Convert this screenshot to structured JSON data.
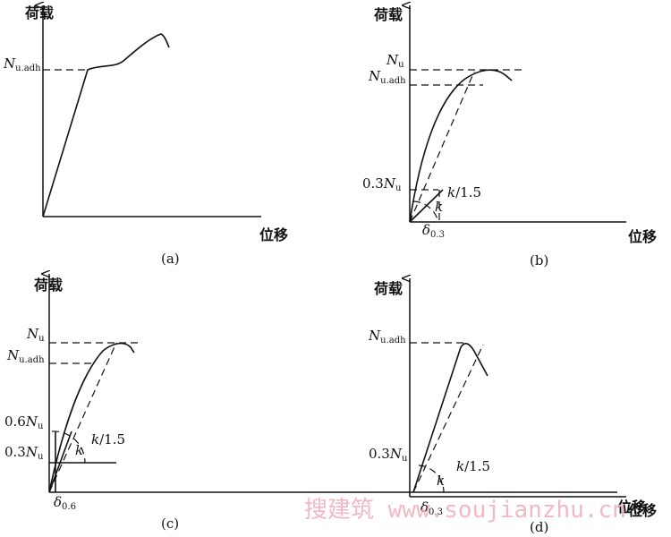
{
  "panels": [
    {
      "caption": "(a)",
      "y_axis": "荷载",
      "x_axis": "位移",
      "labels": [
        {
          "symbol": "N",
          "sub": "u.adh"
        }
      ]
    },
    {
      "caption": "(b)",
      "y_axis": "荷载",
      "x_axis": "位移",
      "labels": [
        {
          "symbol": "N",
          "sub": "u"
        },
        {
          "symbol": "N",
          "sub": "u.adh"
        },
        {
          "coef": "0.3",
          "symbol": "N",
          "sub": "u"
        },
        {
          "symbol": "k",
          "rest": "/1.5"
        },
        {
          "symbol": "k"
        },
        {
          "symbol": "δ",
          "sub": "0.3"
        }
      ]
    },
    {
      "caption": "(c)",
      "y_axis": "荷载",
      "x_axis": "位移",
      "labels": [
        {
          "symbol": "N",
          "sub": "u"
        },
        {
          "symbol": "N",
          "sub": "u.adh"
        },
        {
          "coef": "0.6",
          "symbol": "N",
          "sub": "u"
        },
        {
          "coef": "0.3",
          "symbol": "N",
          "sub": "u"
        },
        {
          "symbol": "k",
          "rest": "/1.5"
        },
        {
          "symbol": "k"
        },
        {
          "symbol": "δ",
          "sub": "0.6"
        }
      ]
    },
    {
      "caption": "(d)",
      "y_axis": "荷载",
      "x_axis": "位移",
      "labels": [
        {
          "symbol": "N",
          "sub": "u.adh"
        },
        {
          "coef": "0.3",
          "symbol": "N",
          "sub": "u"
        },
        {
          "symbol": "k",
          "rest": "/1.5"
        },
        {
          "symbol": "k"
        },
        {
          "symbol": "δ",
          "sub": "0.3"
        }
      ]
    }
  ],
  "watermark": "搜建筑 www.soujianzhu.cn"
}
